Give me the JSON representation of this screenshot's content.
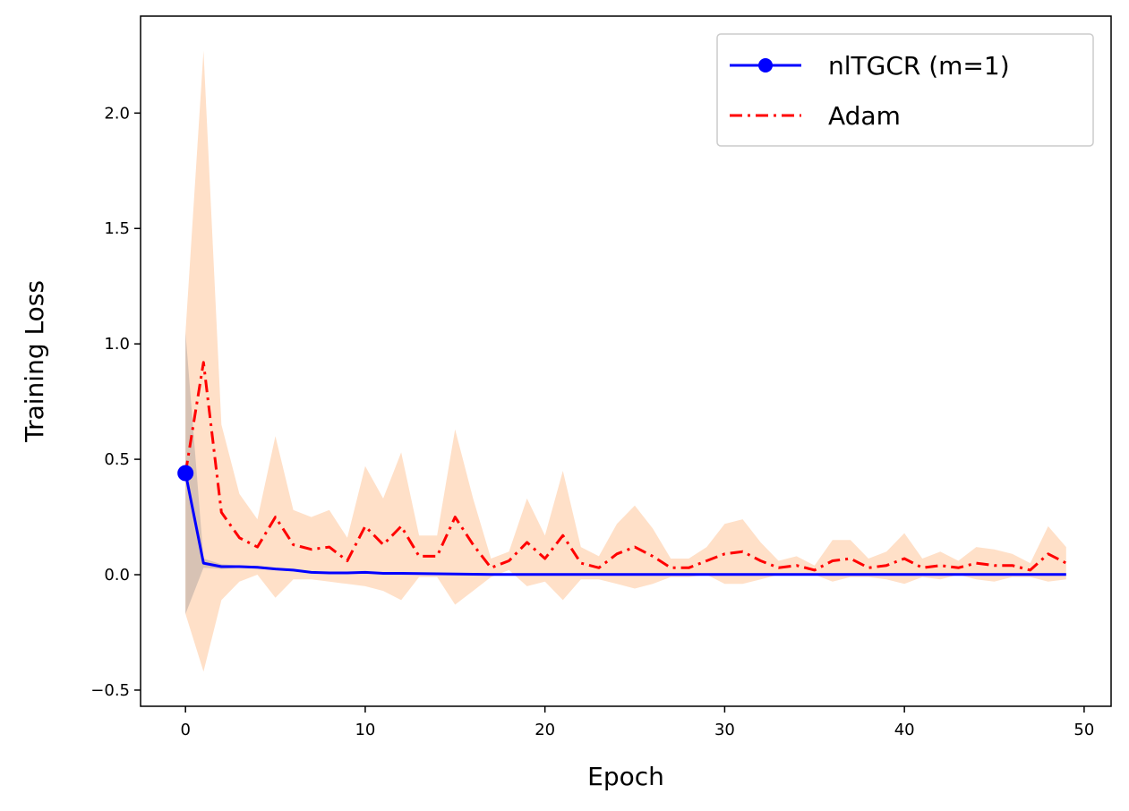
{
  "chart_data": {
    "type": "line",
    "xlabel": "Epoch",
    "ylabel": "Training Loss",
    "xlim": [
      -2.5,
      51.5
    ],
    "ylim": [
      -0.57,
      2.42
    ],
    "xticks": [
      0,
      10,
      20,
      30,
      40,
      50
    ],
    "yticks": [
      -0.5,
      0.0,
      0.5,
      1.0,
      1.5,
      2.0
    ],
    "ytick_labels": [
      "−0.5",
      "0.0",
      "0.5",
      "1.0",
      "1.5",
      "2.0"
    ],
    "grid": false,
    "legend_position": "top-right",
    "series": [
      {
        "name": "nlTGCR (m=1)",
        "color": "#0000ff",
        "band_color": "#c9b8ad",
        "x": [
          0,
          1,
          2,
          3,
          4,
          5,
          6,
          7,
          8,
          9,
          10,
          11,
          12,
          13,
          14,
          15,
          16,
          17,
          18,
          19,
          20,
          21,
          22,
          23,
          24,
          25,
          26,
          27,
          28,
          29,
          30,
          31,
          32,
          33,
          34,
          35,
          36,
          37,
          38,
          39,
          40,
          41,
          42,
          43,
          44,
          45,
          46,
          47,
          48,
          49
        ],
        "y": [
          0.44,
          0.05,
          0.035,
          0.035,
          0.032,
          0.025,
          0.02,
          0.01,
          0.008,
          0.008,
          0.01,
          0.006,
          0.006,
          0.005,
          0.004,
          0.003,
          0.002,
          0.001,
          0.001,
          0.001,
          0.001,
          0.001,
          0.001,
          0.001,
          0.001,
          0.001,
          0.001,
          0.001,
          0.001,
          0.001,
          0.001,
          0.001,
          0.001,
          0.001,
          0.001,
          0.001,
          0.001,
          0.001,
          0.001,
          0.001,
          0.001,
          0.001,
          0.001,
          0.001,
          0.001,
          0.001,
          0.001,
          0.001,
          0.001,
          0.001
        ],
        "upper": [
          1.05,
          0.07,
          0.045,
          0.04,
          0.038,
          0.03,
          0.025,
          0.013,
          0.01,
          0.01,
          0.012,
          0.008,
          0.008,
          0.006,
          0.005,
          0.004,
          0.003,
          0.002,
          0.002,
          0.002,
          0.002,
          0.002,
          0.002,
          0.002,
          0.002,
          0.002,
          0.002,
          0.002,
          0.002,
          0.002,
          0.002,
          0.002,
          0.002,
          0.002,
          0.002,
          0.002,
          0.002,
          0.002,
          0.002,
          0.002,
          0.002,
          0.002,
          0.002,
          0.002,
          0.002,
          0.002,
          0.002,
          0.002,
          0.002,
          0.002
        ],
        "lower": [
          -0.17,
          0.03,
          0.025,
          0.03,
          0.026,
          0.02,
          0.015,
          0.007,
          0.006,
          0.006,
          0.008,
          0.004,
          0.004,
          0.004,
          0.003,
          0.002,
          0.001,
          0.0,
          0.0,
          0.0,
          0.0,
          0.0,
          0.0,
          0.0,
          0.0,
          0.0,
          0.0,
          0.0,
          0.0,
          0.0,
          0.0,
          0.0,
          0.0,
          0.0,
          0.0,
          0.0,
          0.0,
          0.0,
          0.0,
          0.0,
          0.0,
          0.0,
          0.0,
          0.0,
          0.0,
          0.0,
          0.0,
          0.0,
          0.0,
          0.0
        ]
      },
      {
        "name": "Adam",
        "color": "#ff0000",
        "band_color": "#ffe0c8",
        "x": [
          0,
          1,
          2,
          3,
          4,
          5,
          6,
          7,
          8,
          9,
          10,
          11,
          12,
          13,
          14,
          15,
          16,
          17,
          18,
          19,
          20,
          21,
          22,
          23,
          24,
          25,
          26,
          27,
          28,
          29,
          30,
          31,
          32,
          33,
          34,
          35,
          36,
          37,
          38,
          39,
          40,
          41,
          42,
          43,
          44,
          45,
          46,
          47,
          48,
          49
        ],
        "y": [
          0.44,
          0.92,
          0.27,
          0.16,
          0.12,
          0.25,
          0.13,
          0.11,
          0.12,
          0.06,
          0.21,
          0.13,
          0.21,
          0.08,
          0.08,
          0.25,
          0.13,
          0.03,
          0.06,
          0.14,
          0.07,
          0.17,
          0.05,
          0.03,
          0.09,
          0.12,
          0.08,
          0.03,
          0.03,
          0.06,
          0.09,
          0.1,
          0.06,
          0.03,
          0.04,
          0.02,
          0.06,
          0.07,
          0.03,
          0.04,
          0.07,
          0.03,
          0.04,
          0.03,
          0.05,
          0.04,
          0.04,
          0.02,
          0.09,
          0.05
        ],
        "upper": [
          1.05,
          2.27,
          0.65,
          0.35,
          0.24,
          0.6,
          0.28,
          0.25,
          0.28,
          0.16,
          0.47,
          0.33,
          0.53,
          0.17,
          0.17,
          0.63,
          0.33,
          0.07,
          0.1,
          0.33,
          0.17,
          0.45,
          0.12,
          0.08,
          0.22,
          0.3,
          0.2,
          0.07,
          0.07,
          0.12,
          0.22,
          0.24,
          0.14,
          0.06,
          0.08,
          0.04,
          0.15,
          0.15,
          0.07,
          0.1,
          0.18,
          0.07,
          0.1,
          0.06,
          0.12,
          0.11,
          0.09,
          0.05,
          0.21,
          0.12
        ],
        "lower": [
          -0.17,
          -0.42,
          -0.11,
          -0.03,
          0.0,
          -0.1,
          -0.02,
          -0.02,
          -0.03,
          -0.04,
          -0.05,
          -0.07,
          -0.11,
          -0.01,
          -0.01,
          -0.13,
          -0.07,
          -0.01,
          0.02,
          -0.05,
          -0.03,
          -0.11,
          -0.02,
          -0.02,
          -0.04,
          -0.06,
          -0.04,
          -0.01,
          -0.01,
          0.0,
          -0.04,
          -0.04,
          -0.02,
          0.0,
          0.0,
          0.0,
          -0.03,
          -0.01,
          -0.01,
          -0.02,
          -0.04,
          -0.01,
          -0.02,
          0.0,
          -0.02,
          -0.03,
          -0.01,
          -0.01,
          -0.03,
          -0.02
        ]
      }
    ]
  }
}
